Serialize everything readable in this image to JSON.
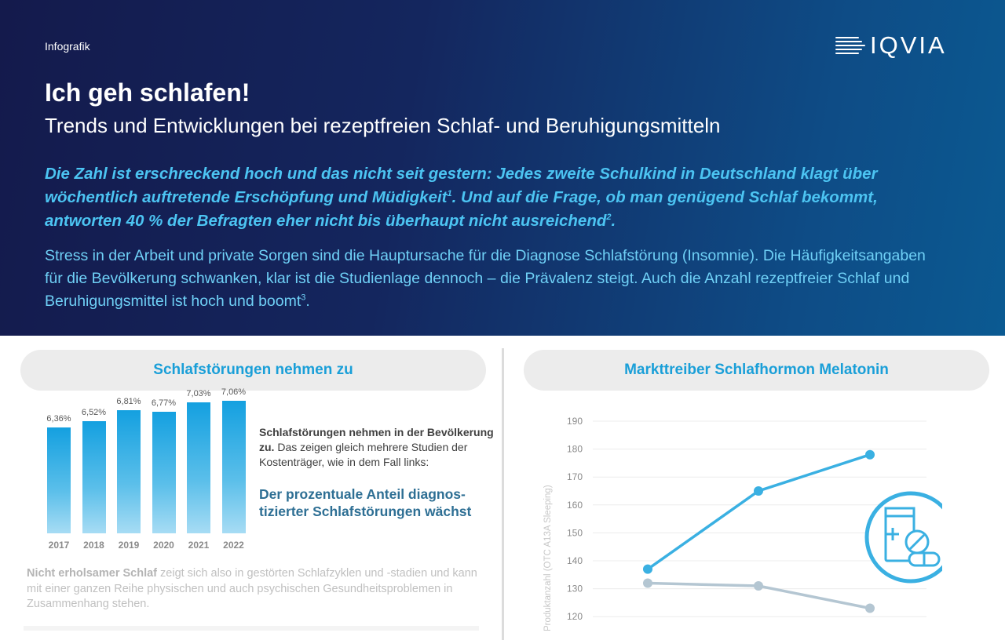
{
  "header": {
    "tag": "Infografik",
    "logo": "IQVIA",
    "title": "Ich geh schlafen!",
    "subtitle": "Trends und Entwicklungen bei rezeptfreien Schlaf- und Beruhigungsmitteln"
  },
  "lead": {
    "text": "Die Zahl ist erschreckend hoch und das nicht seit gestern: Jedes zweite Schulkind in Deutschland klagt über wöchentlich auftretende Erschöpfung und Müdigkeit",
    "sup1": "1",
    "text2": ". Und auf die Frage, ob man genügend Schlaf bekommt, antworten 40 % der Befragten eher nicht bis überhaupt nicht ausreichend",
    "sup2": "2",
    "text3": "."
  },
  "body": {
    "text": "Stress in der Arbeit und private Sorgen sind die Hauptursache für die Diagnose Schlafstörung (Insomnie). Die Häufigkeitsangaben für die Bevölkerung schwanken, klar ist die Studienlage dennoch – die Prävalenz steigt. Auch die Anzahl rezeptfreier Schlaf und Beruhigungsmittel ist hoch und boomt",
    "sup": "3",
    "end": "."
  },
  "left_panel": {
    "title": "Schlafstörungen nehmen zu",
    "side_bold": "Schlafstörungen nehmen in der Bevölkerung zu.",
    "side_rest": " Das zeigen gleich mehrere Studien der Kostenträger, wie in dem Fall links:",
    "highlight": "Der prozentuale Anteil diagnos-tizierter Schlafstörungen wächst",
    "fade_bold": "Nicht erholsamer Schlaf",
    "fade_rest": " zeigt sich also in gestörten Schlafzyklen und -stadien und kann mit einer ganzen Reihe physischen und auch psychischen Gesundheitsproblemen in Zusammenhang stehen."
  },
  "right_panel": {
    "title": "Markttreiber Schlafhormon Melatonin",
    "icon": "medicine-bottle-pills-icon"
  },
  "colors": {
    "accent": "#1a9fd8",
    "bar": "#14a0e0",
    "line_up": "#3ab0e2",
    "line_down": "#b4c6d2"
  },
  "chart_data": [
    {
      "type": "bar",
      "categories": [
        "2017",
        "2018",
        "2019",
        "2020",
        "2021",
        "2022"
      ],
      "values": [
        6.36,
        6.52,
        6.81,
        6.77,
        7.03,
        7.06
      ],
      "value_labels": [
        "6,36%",
        "6,52%",
        "6,81%",
        "6,77%",
        "7,03%",
        "7,06%"
      ],
      "title": "Schlafstörungen nehmen zu"
    },
    {
      "type": "line",
      "title": "Markttreiber Schlafhormon Melatonin",
      "ylabel": "Produktanzahl (OTC A13A Sleeping)",
      "ylim": [
        120,
        190
      ],
      "yticks": [
        "190",
        "180",
        "170",
        "160",
        "150",
        "140",
        "130",
        "120"
      ],
      "x": [
        1,
        2,
        3
      ],
      "series": [
        {
          "values": [
            137,
            165,
            178
          ],
          "color": "#3ab0e2"
        },
        {
          "values": [
            132,
            131,
            123
          ],
          "color": "#b4c6d2"
        }
      ],
      "grid": true
    }
  ]
}
